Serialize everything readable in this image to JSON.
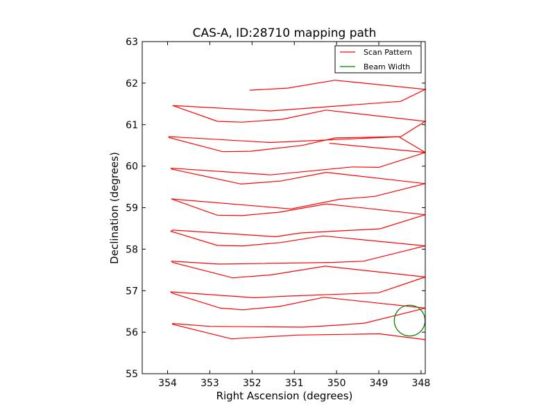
{
  "chart_data": {
    "type": "line",
    "title": "CAS-A, ID:28710 mapping path",
    "xlabel": "Right Ascension (degrees)",
    "ylabel": "Declination (degrees)",
    "xlim": [
      354.6,
      347.9
    ],
    "ylim": [
      55,
      63
    ],
    "x_ticks": [
      354,
      353,
      352,
      351,
      350,
      349,
      348
    ],
    "y_ticks": [
      55,
      56,
      57,
      58,
      59,
      60,
      61,
      62,
      63
    ],
    "legend_position": "top-right",
    "legend": [
      {
        "label": "Scan Pattern",
        "color": "#ff0000",
        "kind": "line"
      },
      {
        "label": "Beam Width",
        "color": "#008000",
        "kind": "line"
      }
    ],
    "series": [
      {
        "name": "Scan Pattern",
        "color": "#ff0000",
        "points": [
          [
            352.06,
            61.83
          ],
          [
            351.16,
            61.88
          ],
          [
            350.04,
            62.07
          ],
          [
            347.9,
            61.85
          ],
          [
            348.48,
            61.56
          ],
          [
            351.56,
            61.33
          ],
          [
            353.88,
            61.46
          ],
          [
            352.82,
            61.08
          ],
          [
            352.23,
            61.06
          ],
          [
            351.28,
            61.13
          ],
          [
            350.25,
            61.35
          ],
          [
            347.9,
            61.08
          ],
          [
            348.48,
            60.71
          ],
          [
            351.57,
            60.57
          ],
          [
            353.97,
            60.71
          ],
          [
            353.97,
            60.69
          ],
          [
            352.7,
            60.35
          ],
          [
            352.03,
            60.36
          ],
          [
            350.81,
            60.5
          ],
          [
            350.03,
            60.68
          ],
          [
            348.53,
            60.71
          ],
          [
            347.9,
            60.33
          ],
          [
            350.17,
            60.55
          ],
          [
            347.9,
            60.33
          ],
          [
            349.0,
            59.97
          ],
          [
            349.63,
            59.98
          ],
          [
            351.56,
            59.79
          ],
          [
            353.91,
            59.95
          ],
          [
            353.91,
            59.93
          ],
          [
            352.26,
            59.57
          ],
          [
            351.33,
            59.64
          ],
          [
            350.24,
            59.85
          ],
          [
            347.9,
            59.58
          ],
          [
            349.1,
            59.27
          ],
          [
            349.94,
            59.2
          ],
          [
            351.08,
            58.97
          ],
          [
            353.91,
            59.21
          ],
          [
            352.83,
            58.82
          ],
          [
            352.23,
            58.81
          ],
          [
            351.36,
            58.89
          ],
          [
            350.24,
            59.09
          ],
          [
            347.9,
            58.83
          ],
          [
            348.97,
            58.49
          ],
          [
            350.85,
            58.39
          ],
          [
            351.44,
            58.3
          ],
          [
            353.88,
            58.46
          ],
          [
            353.92,
            58.43
          ],
          [
            352.82,
            58.09
          ],
          [
            352.21,
            58.08
          ],
          [
            351.32,
            58.16
          ],
          [
            350.32,
            58.32
          ],
          [
            347.9,
            58.08
          ],
          [
            349.36,
            57.71
          ],
          [
            350.08,
            57.68
          ],
          [
            352.78,
            57.64
          ],
          [
            353.9,
            57.71
          ],
          [
            353.88,
            57.68
          ],
          [
            352.46,
            57.31
          ],
          [
            351.55,
            57.38
          ],
          [
            350.27,
            57.59
          ],
          [
            347.9,
            57.33
          ],
          [
            349.0,
            56.95
          ],
          [
            351.13,
            56.87
          ],
          [
            351.95,
            56.83
          ],
          [
            353.92,
            56.97
          ],
          [
            353.89,
            56.94
          ],
          [
            352.75,
            56.58
          ],
          [
            352.22,
            56.54
          ],
          [
            351.35,
            56.62
          ],
          [
            350.3,
            56.84
          ],
          [
            347.9,
            56.58
          ],
          [
            349.33,
            56.22
          ],
          [
            349.95,
            56.17
          ],
          [
            350.8,
            56.12
          ],
          [
            353.0,
            56.14
          ],
          [
            353.88,
            56.21
          ],
          [
            353.88,
            56.19
          ],
          [
            352.49,
            55.84
          ],
          [
            350.93,
            55.93
          ],
          [
            348.98,
            55.96
          ],
          [
            347.9,
            55.82
          ]
        ]
      },
      {
        "name": "Beam Width",
        "color": "#008000",
        "shape": "circle",
        "center": [
          348.27,
          56.28
        ],
        "radius_dec_deg": 0.37
      }
    ]
  }
}
